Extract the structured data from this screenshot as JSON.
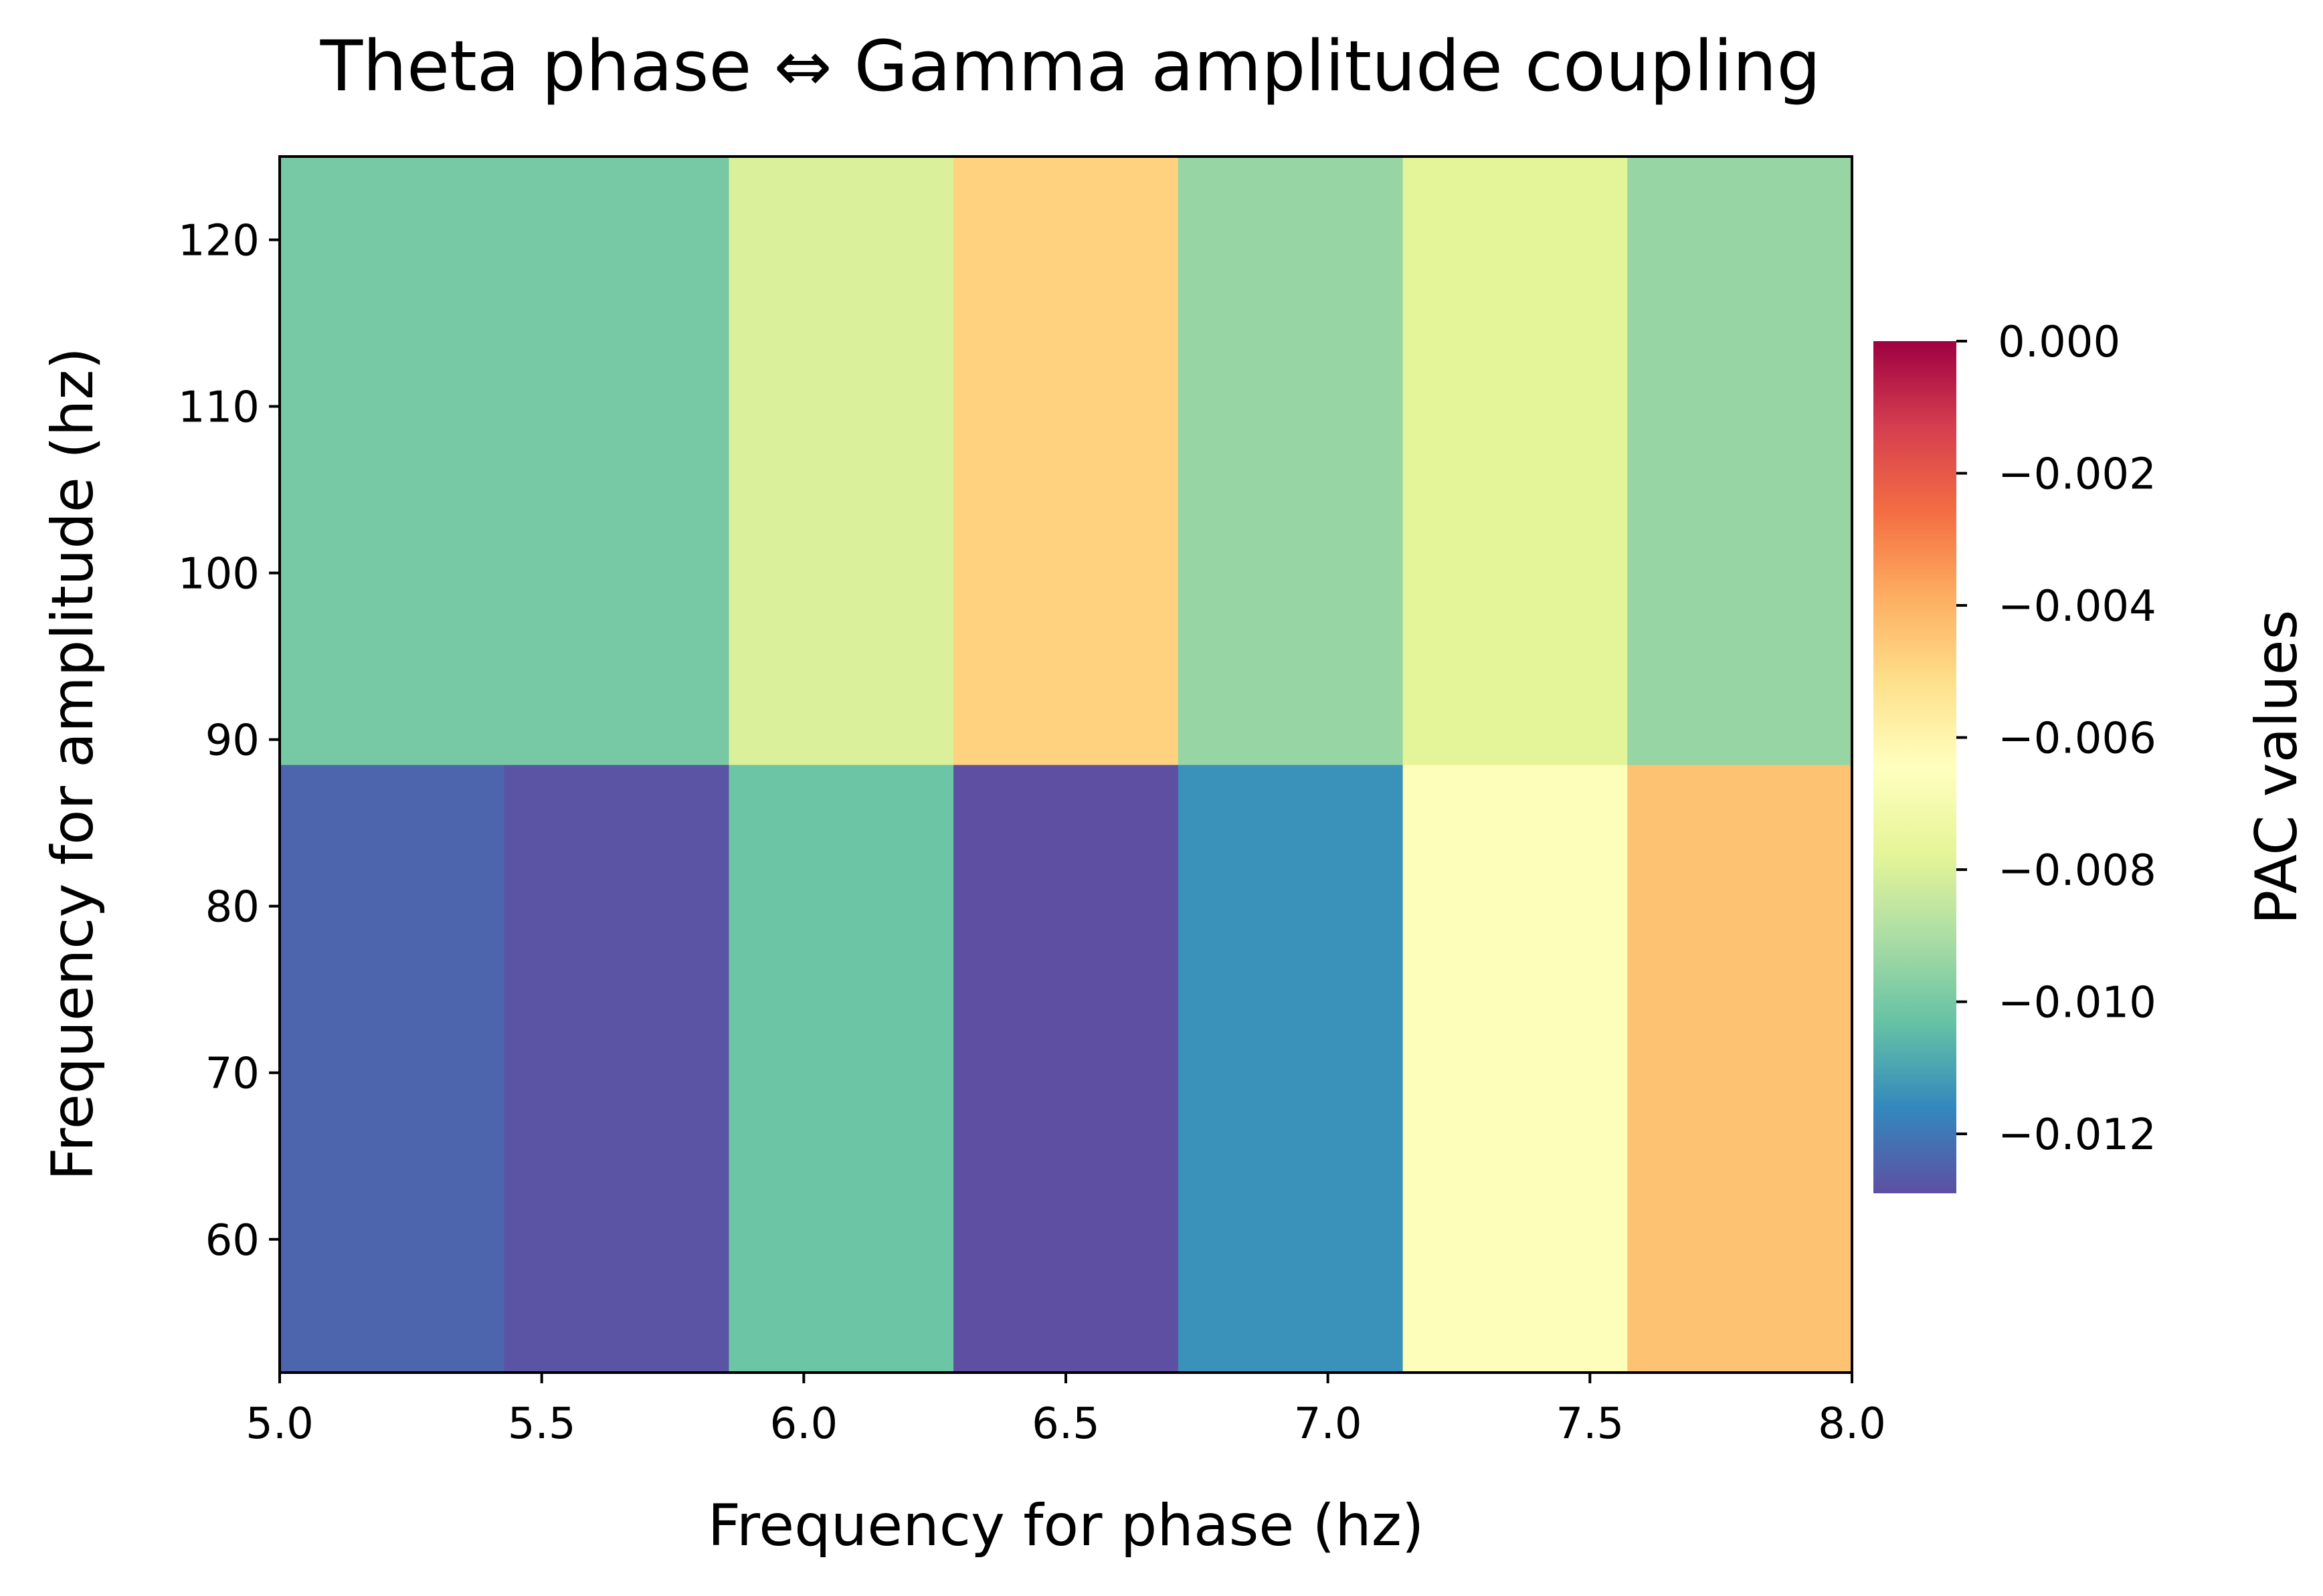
{
  "chart_data": {
    "type": "heatmap",
    "title": "Theta phase ⇔ Gamma amplitude coupling",
    "xlabel": "Frequency for phase (hz)",
    "ylabel": "Frequency for amplitude (hz)",
    "colorbar_label": "PAC values",
    "colormap": "Spectral_r",
    "xlim": [
      5.0,
      8.0
    ],
    "ylim": [
      52,
      125
    ],
    "x_ticks": [
      5.0,
      5.5,
      6.0,
      6.5,
      7.0,
      7.5,
      8.0
    ],
    "x_tick_labels": [
      "5.0",
      "5.5",
      "6.0",
      "6.5",
      "7.0",
      "7.5",
      "8.0"
    ],
    "y_ticks": [
      60,
      70,
      80,
      90,
      100,
      110,
      120
    ],
    "y_tick_labels": [
      "60",
      "70",
      "80",
      "90",
      "100",
      "110",
      "120"
    ],
    "x_edges": [
      5.0,
      5.4286,
      5.8571,
      6.2857,
      6.7143,
      7.1429,
      7.5714,
      8.0
    ],
    "y_edges": [
      52,
      88.5,
      125
    ],
    "values": [
      [
        -0.0124,
        -0.0128,
        -0.0102,
        -0.013,
        -0.0114,
        -0.0066,
        -0.0044
      ],
      [
        -0.01,
        -0.01,
        -0.008,
        -0.0048,
        -0.0094,
        -0.0078,
        -0.0094
      ]
    ],
    "colorbar_range": [
      -0.0129,
      0.0
    ],
    "colorbar_ticks": [
      0.0,
      -0.002,
      -0.004,
      -0.006,
      -0.008,
      -0.01,
      -0.012
    ],
    "colorbar_tick_labels": [
      "0.000",
      "−0.002",
      "−0.004",
      "−0.006",
      "−0.008",
      "−0.010",
      "−0.012"
    ],
    "grid": false
  }
}
